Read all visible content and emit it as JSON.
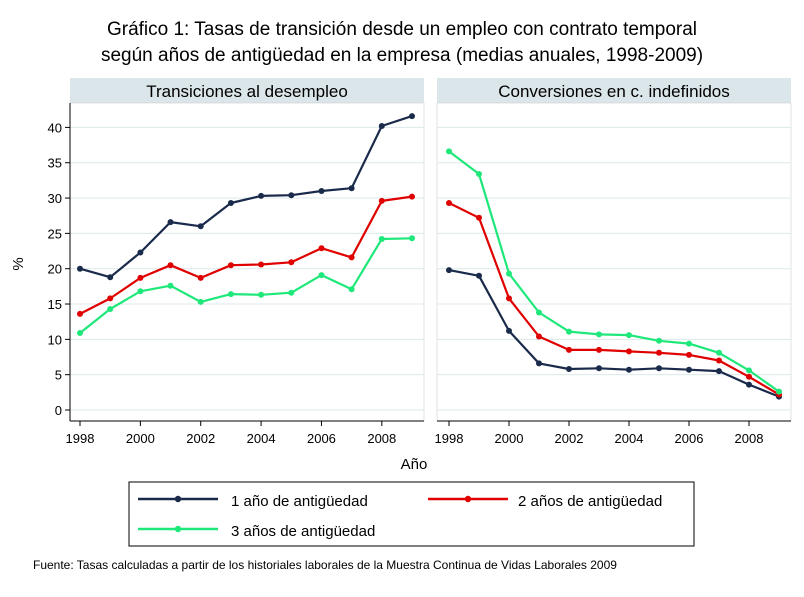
{
  "title_line1": "Gráfico 1: Tasas de transición desde un empleo con contrato temporal",
  "title_line2": "según años de antigüedad en la empresa (medias anuales, 1998-2009)",
  "ylabel": "%",
  "xlabel": "Año",
  "source_note": "Fuente: Tasas calculadas a partir de los historiales laborales de la Muestra Continua de Vidas Laborales 2009",
  "colors": {
    "series1": "#1a2a4a",
    "series2": "#e00000",
    "series3": "#1ee87a",
    "panel_header": "#dbe6ea",
    "grid": "#dce9e9"
  },
  "chart_data": [
    {
      "type": "line",
      "panel": "Transiciones al desempleo",
      "title": "Transiciones al desempleo",
      "x": [
        1998,
        1999,
        2000,
        2001,
        2002,
        2003,
        2004,
        2005,
        2006,
        2007,
        2008,
        2009
      ],
      "xticks": [
        1998,
        2000,
        2002,
        2004,
        2006,
        2008
      ],
      "yticks": [
        0,
        5,
        10,
        15,
        20,
        25,
        30,
        35,
        40
      ],
      "xlim": [
        1998,
        2009
      ],
      "ylim": [
        0,
        42
      ],
      "series": [
        {
          "name": "1 año de antigüedad",
          "values": [
            20.0,
            18.8,
            22.3,
            26.6,
            26.0,
            29.3,
            30.3,
            30.4,
            31.0,
            31.4,
            40.2,
            41.6
          ]
        },
        {
          "name": "2 años de antigüedad",
          "values": [
            13.6,
            15.8,
            18.7,
            20.5,
            18.7,
            20.5,
            20.6,
            20.9,
            22.9,
            21.6,
            29.6,
            30.2
          ]
        },
        {
          "name": "3 años de antigüedad",
          "values": [
            10.9,
            14.3,
            16.8,
            17.6,
            15.3,
            16.4,
            16.3,
            16.6,
            19.1,
            17.1,
            24.2,
            24.3
          ]
        }
      ]
    },
    {
      "type": "line",
      "panel": "Conversiones en c. indefinidos",
      "title": "Conversiones en c. indefinidos",
      "x": [
        1998,
        1999,
        2000,
        2001,
        2002,
        2003,
        2004,
        2005,
        2006,
        2007,
        2008,
        2009
      ],
      "xticks": [
        1998,
        2000,
        2002,
        2004,
        2006,
        2008
      ],
      "xlim": [
        1998,
        2009
      ],
      "ylim": [
        0,
        42
      ],
      "series": [
        {
          "name": "1 año de antigüedad",
          "values": [
            19.8,
            19.0,
            11.2,
            6.6,
            5.8,
            5.9,
            5.7,
            5.9,
            5.7,
            5.5,
            3.6,
            1.9
          ]
        },
        {
          "name": "2 años de antigüedad",
          "values": [
            29.3,
            27.2,
            15.8,
            10.4,
            8.5,
            8.5,
            8.3,
            8.1,
            7.8,
            7.0,
            4.7,
            2.2
          ]
        },
        {
          "name": "3 años de antigüedad",
          "values": [
            36.6,
            33.4,
            19.3,
            13.8,
            11.1,
            10.7,
            10.6,
            9.8,
            9.4,
            8.1,
            5.6,
            2.6
          ]
        }
      ]
    }
  ]
}
